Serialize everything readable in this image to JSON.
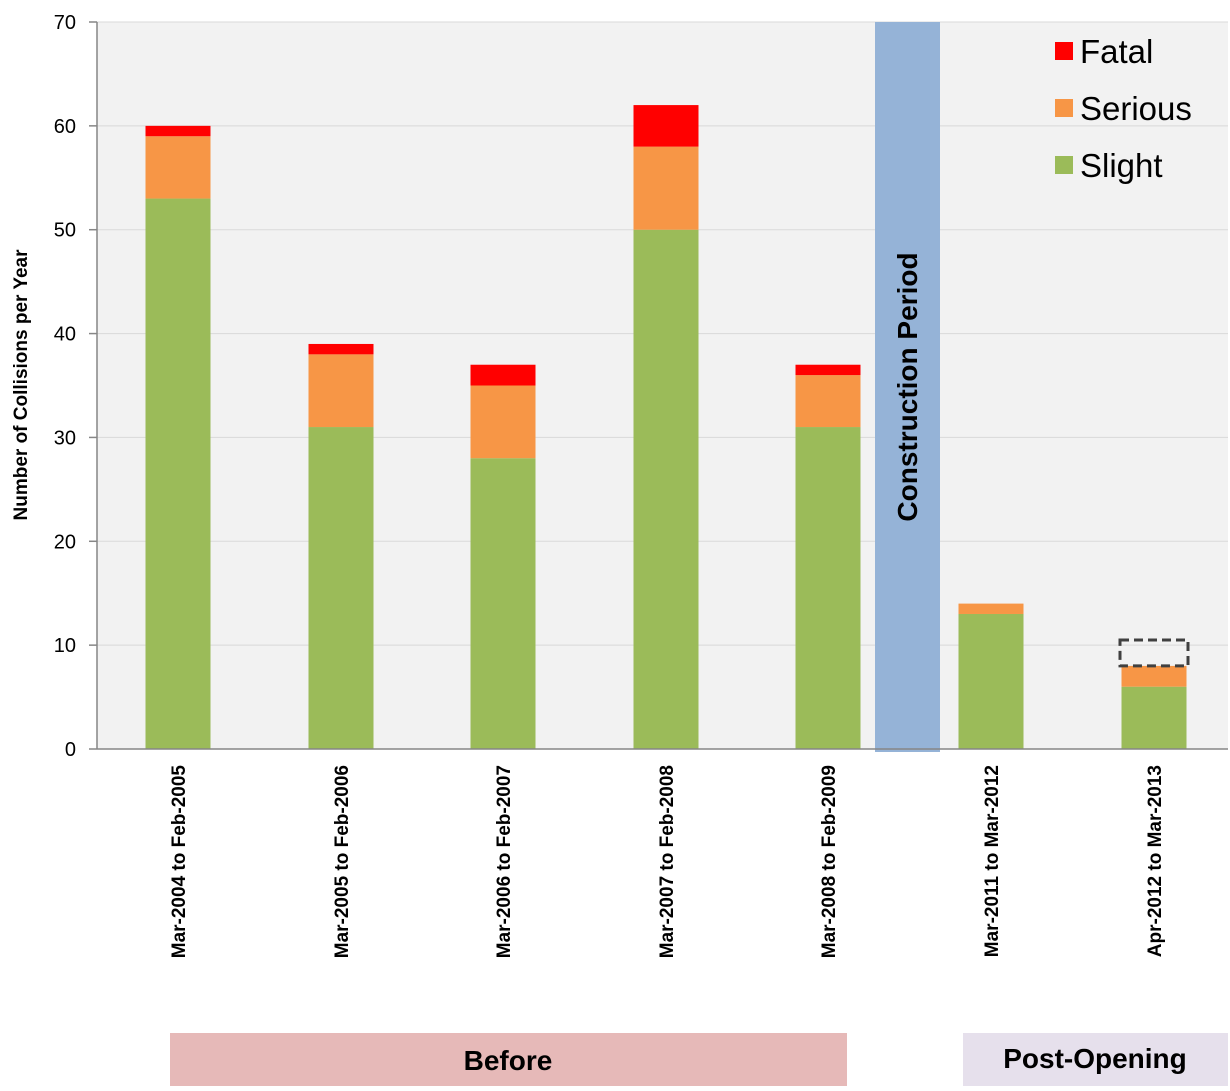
{
  "chart_data": {
    "type": "bar",
    "stacked": true,
    "title": "",
    "xlabel": "",
    "ylabel": "Number of Collisions per Year",
    "ylim": [
      0,
      70
    ],
    "yticks": [
      0,
      10,
      20,
      30,
      40,
      50,
      60,
      70
    ],
    "grid": true,
    "legend_position": "top-right",
    "categories": [
      "Mar-2004 to Feb-2005",
      "Mar-2005 to Feb-2006",
      "Mar-2006 to Feb-2007",
      "Mar-2007 to Feb-2008",
      "Mar-2008 to Feb-2009",
      "Mar-2011 to Mar-2012",
      "Apr-2012 to Mar-2013"
    ],
    "series": [
      {
        "name": "Slight",
        "color": "#9bbb59",
        "values": [
          53,
          31,
          28,
          50,
          31,
          13,
          6
        ]
      },
      {
        "name": "Serious",
        "color": "#f79646",
        "values": [
          6,
          7,
          7,
          8,
          5,
          1,
          2
        ]
      },
      {
        "name": "Fatal",
        "color": "#ff0000",
        "values": [
          1,
          1,
          2,
          4,
          1,
          0,
          0
        ]
      }
    ],
    "legend_order": [
      "Fatal",
      "Serious",
      "Slight"
    ],
    "annotations": {
      "construction_label": "Construction Period",
      "construction_color": "#95b3d7",
      "dashed_box_category": "Apr-2012 to Mar-2013",
      "dashed_box_range": [
        8,
        10.5
      ],
      "periods": [
        {
          "label": "Before",
          "color": "#e6b9b8"
        },
        {
          "label": "Post-Opening",
          "color": "#e6e0ec"
        }
      ]
    }
  }
}
